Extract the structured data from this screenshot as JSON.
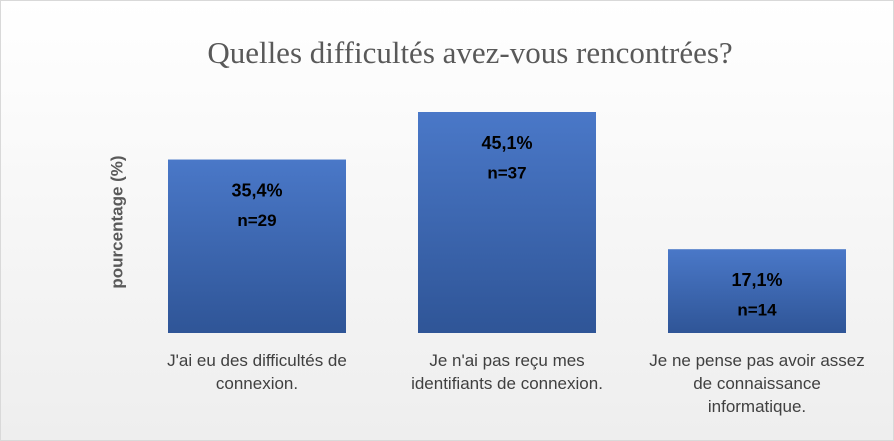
{
  "chart_data": {
    "type": "bar",
    "title": "Quelles difficultés avez-vous rencontrées?",
    "y_label": "pourcentage (%)",
    "categories": [
      "J'ai eu des difficultés de connexion.",
      "Je n'ai pas reçu mes identifiants de connexion.",
      "Je ne pense pas avoir assez de connaissance informatique."
    ],
    "values": [
      35.4,
      45.1,
      17.1
    ],
    "value_labels": [
      "35,4%",
      "45,1%",
      "17,1%"
    ],
    "n_labels": [
      "n=29",
      "n=37",
      "n=14"
    ],
    "color": "#4472c4"
  }
}
